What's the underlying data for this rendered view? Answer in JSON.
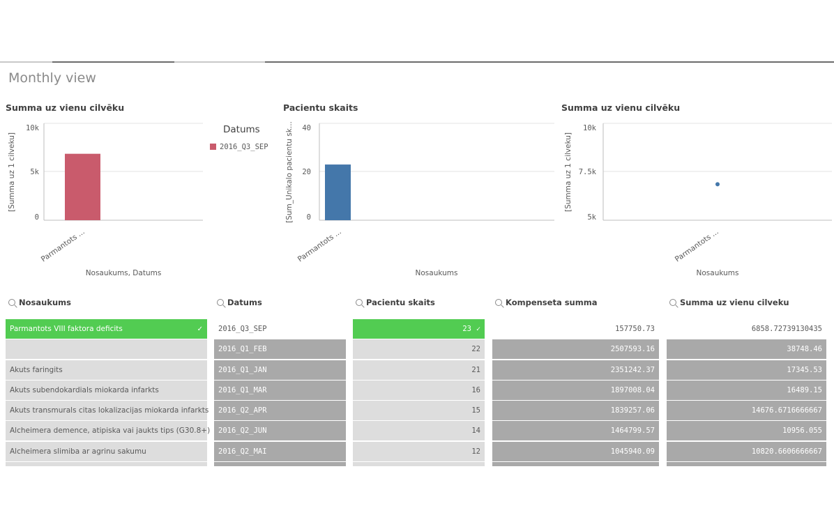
{
  "sheet": {
    "title": "Monthly view"
  },
  "colors": {
    "selected": "#52cc52",
    "alternative": "#dddddd",
    "excluded": "#a9a9a9",
    "bar_red": "#c95b6c",
    "bar_blue": "#4477aa",
    "point": "#4477aa"
  },
  "chart_data": [
    {
      "type": "bar",
      "title": "Summa uz vienu cilvēku",
      "categories": [
        "Parmantots ..."
      ],
      "series": [
        {
          "name": "2016_Q3_SEP",
          "values": [
            6858.73
          ]
        }
      ],
      "xlabel": "Nosaukums, Datums",
      "ylabel": "[Summa uz 1 cilveku]",
      "yticks": [
        "0",
        "5k",
        "10k"
      ],
      "ylim": [
        0,
        10000
      ],
      "legend": {
        "title": "Datums",
        "position": "right",
        "items": [
          "2016_Q3_SEP"
        ]
      },
      "grid": true
    },
    {
      "type": "bar",
      "title": "Pacientu skaits",
      "categories": [
        "Parmantots ..."
      ],
      "values": [
        23
      ],
      "xlabel": "Nosaukums",
      "ylabel": "[Sum_Unikalo pacientu sk...",
      "yticks": [
        "0",
        "20",
        "40"
      ],
      "ylim": [
        0,
        40
      ],
      "grid": true
    },
    {
      "type": "scatter",
      "title": "Summa uz vienu cilvēku",
      "categories": [
        "Parmantots ..."
      ],
      "values": [
        6858.73
      ],
      "xlabel": "Nosaukums",
      "ylabel": "[Summa uz 1 cilveku]",
      "yticks": [
        "5k",
        "7.5k",
        "10k"
      ],
      "ylim": [
        5000,
        10000
      ],
      "grid": true
    }
  ],
  "lists": {
    "nosaukums": {
      "header": "Nosaukums",
      "rows": [
        {
          "text": "Parmantots VIII faktora deficits",
          "state": "selected",
          "check": "✓"
        },
        {
          "text": "",
          "state": "alternative"
        },
        {
          "text": "Akuts faringits",
          "state": "alternative"
        },
        {
          "text": "Akuts subendokardials miokarda infarkts",
          "state": "alternative"
        },
        {
          "text": "Akuts transmurals citas lokalizacijas miokarda infarkts",
          "state": "alternative"
        },
        {
          "text": "Alcheimera demence, atipiska vai jaukts tips (G30.8+)",
          "state": "alternative"
        },
        {
          "text": "Alcheimera slimiba ar agrinu sakumu",
          "state": "alternative"
        }
      ]
    },
    "datums": {
      "header": "Datums",
      "rows": [
        {
          "text": "2016_Q3_SEP",
          "state": "possible"
        },
        {
          "text": "2016_Q1_FEB",
          "state": "excluded"
        },
        {
          "text": "2016_Q1_JAN",
          "state": "excluded"
        },
        {
          "text": "2016_Q1_MAR",
          "state": "excluded"
        },
        {
          "text": "2016_Q2_APR",
          "state": "excluded"
        },
        {
          "text": "2016_Q2_JUN",
          "state": "excluded"
        },
        {
          "text": "2016_Q2_MAI",
          "state": "excluded"
        }
      ]
    },
    "pacientu": {
      "header": "Pacientu skaits",
      "rows": [
        {
          "text": "23",
          "state": "selected",
          "check": "✓"
        },
        {
          "text": "22",
          "state": "alternative"
        },
        {
          "text": "21",
          "state": "alternative"
        },
        {
          "text": "16",
          "state": "alternative"
        },
        {
          "text": "15",
          "state": "alternative"
        },
        {
          "text": "14",
          "state": "alternative"
        },
        {
          "text": "12",
          "state": "alternative"
        }
      ]
    },
    "kompenseta": {
      "header": "Kompenseta summa",
      "rows": [
        {
          "text": "157750.73",
          "state": "possible"
        },
        {
          "text": "2507593.16",
          "state": "excluded"
        },
        {
          "text": "2351242.37",
          "state": "excluded"
        },
        {
          "text": "1897008.04",
          "state": "excluded"
        },
        {
          "text": "1839257.06",
          "state": "excluded"
        },
        {
          "text": "1464799.57",
          "state": "excluded"
        },
        {
          "text": "1045940.09",
          "state": "excluded"
        }
      ]
    },
    "summa": {
      "header": "Summa uz vienu cilveku",
      "rows": [
        {
          "text": "6858.72739130435",
          "state": "possible"
        },
        {
          "text": "38748.46",
          "state": "excluded"
        },
        {
          "text": "17345.53",
          "state": "excluded"
        },
        {
          "text": "16489.15",
          "state": "excluded"
        },
        {
          "text": "14676.6716666667",
          "state": "excluded"
        },
        {
          "text": "10956.055",
          "state": "excluded"
        },
        {
          "text": "10820.6606666667",
          "state": "excluded"
        }
      ]
    }
  }
}
